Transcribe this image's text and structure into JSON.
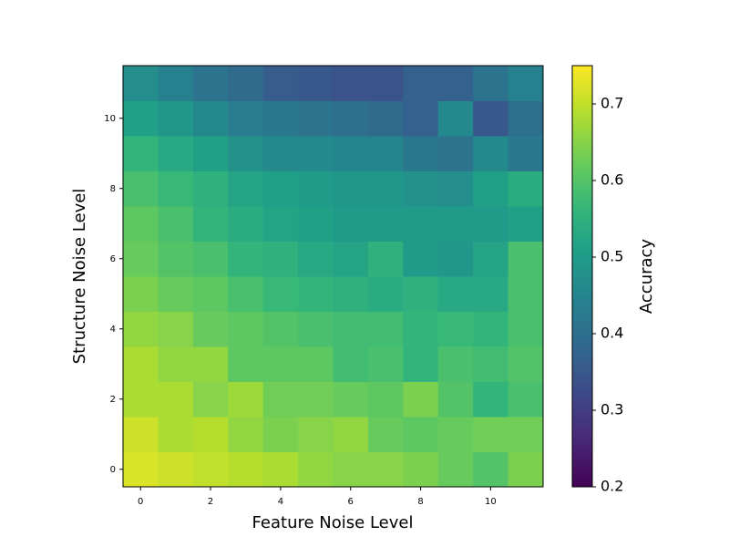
{
  "chart_data": {
    "type": "heatmap",
    "xlabel": "Feature Noise Level",
    "ylabel": "Structure Noise Level",
    "colorbar_label": "Accuracy",
    "cmap": "viridis",
    "x": [
      0,
      1,
      2,
      3,
      4,
      5,
      6,
      7,
      8,
      9,
      10,
      11
    ],
    "y": [
      0,
      1,
      2,
      3,
      4,
      5,
      6,
      7,
      8,
      9,
      10,
      11
    ],
    "z": [
      [
        0.72,
        0.71,
        0.7,
        0.69,
        0.68,
        0.66,
        0.65,
        0.65,
        0.64,
        0.62,
        0.6,
        0.64
      ],
      [
        0.71,
        0.68,
        0.69,
        0.66,
        0.64,
        0.65,
        0.66,
        0.62,
        0.61,
        0.62,
        0.63,
        0.63
      ],
      [
        0.68,
        0.68,
        0.65,
        0.67,
        0.63,
        0.63,
        0.62,
        0.61,
        0.64,
        0.6,
        0.56,
        0.59
      ],
      [
        0.68,
        0.66,
        0.66,
        0.61,
        0.61,
        0.61,
        0.58,
        0.59,
        0.56,
        0.59,
        0.58,
        0.6
      ],
      [
        0.66,
        0.65,
        0.62,
        0.61,
        0.6,
        0.59,
        0.58,
        0.58,
        0.56,
        0.57,
        0.56,
        0.59
      ],
      [
        0.64,
        0.62,
        0.61,
        0.59,
        0.57,
        0.56,
        0.55,
        0.54,
        0.55,
        0.53,
        0.53,
        0.59
      ],
      [
        0.62,
        0.6,
        0.59,
        0.56,
        0.55,
        0.53,
        0.52,
        0.55,
        0.5,
        0.49,
        0.52,
        0.59
      ],
      [
        0.61,
        0.59,
        0.56,
        0.54,
        0.52,
        0.51,
        0.5,
        0.5,
        0.5,
        0.5,
        0.5,
        0.51
      ],
      [
        0.59,
        0.57,
        0.55,
        0.52,
        0.51,
        0.5,
        0.49,
        0.49,
        0.48,
        0.47,
        0.51,
        0.54
      ],
      [
        0.56,
        0.53,
        0.51,
        0.48,
        0.46,
        0.46,
        0.45,
        0.45,
        0.42,
        0.41,
        0.46,
        0.42
      ],
      [
        0.51,
        0.49,
        0.46,
        0.43,
        0.42,
        0.41,
        0.4,
        0.39,
        0.37,
        0.46,
        0.35,
        0.4
      ],
      [
        0.47,
        0.44,
        0.41,
        0.39,
        0.36,
        0.35,
        0.34,
        0.34,
        0.37,
        0.37,
        0.41,
        0.44
      ]
    ],
    "xlim": [
      -0.5,
      11.5
    ],
    "ylim": [
      -0.5,
      11.5
    ],
    "xticks": [
      0,
      2,
      4,
      6,
      8,
      10
    ],
    "yticks": [
      0,
      2,
      4,
      6,
      8,
      10
    ],
    "clim": [
      0.2,
      0.75
    ],
    "cticks": [
      0.2,
      0.3,
      0.4,
      0.5,
      0.6,
      0.7
    ]
  }
}
